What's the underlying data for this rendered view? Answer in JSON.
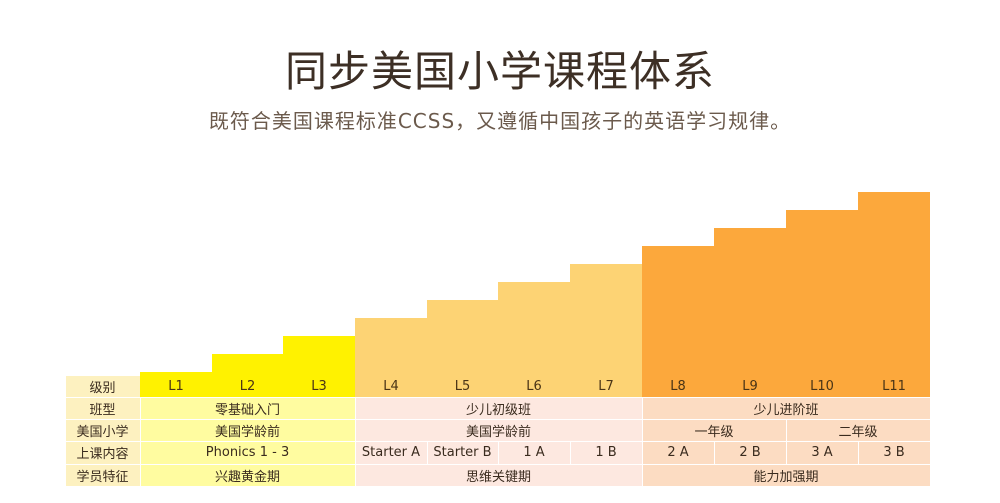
{
  "title": "同步美国小学课程体系",
  "subtitle": "既符合美国课程标准CCSS，又遵循中国孩子的英语学习规律。",
  "colors": {
    "group1": "#fff200",
    "group2": "#fdd374",
    "group3": "#fca83c",
    "row_label_bg": "#fdf1c0",
    "group1_row_bg": "#fffca0",
    "group2_row_bg": "#fde8e0",
    "group3_row_bg": "#fcdcc2"
  },
  "row_labels": [
    "级别",
    "班型",
    "美国小学",
    "上课内容",
    "学员特征"
  ],
  "levels": [
    "L1",
    "L2",
    "L3",
    "L4",
    "L5",
    "L6",
    "L7",
    "L8",
    "L9",
    "L10",
    "L11"
  ],
  "class_type": [
    "零基础入门",
    "少儿初级班",
    "少儿进阶班"
  ],
  "us_grade": [
    "美国学龄前",
    "美国学龄前",
    "一年级",
    "二年级"
  ],
  "content": [
    "Phonics 1 - 3",
    "Starter A",
    "Starter B",
    "1 A",
    "1 B",
    "2 A",
    "2 B",
    "3 A",
    "3 B"
  ],
  "traits": [
    "兴趣黄金期",
    "思维关键期",
    "能力加强期"
  ]
}
